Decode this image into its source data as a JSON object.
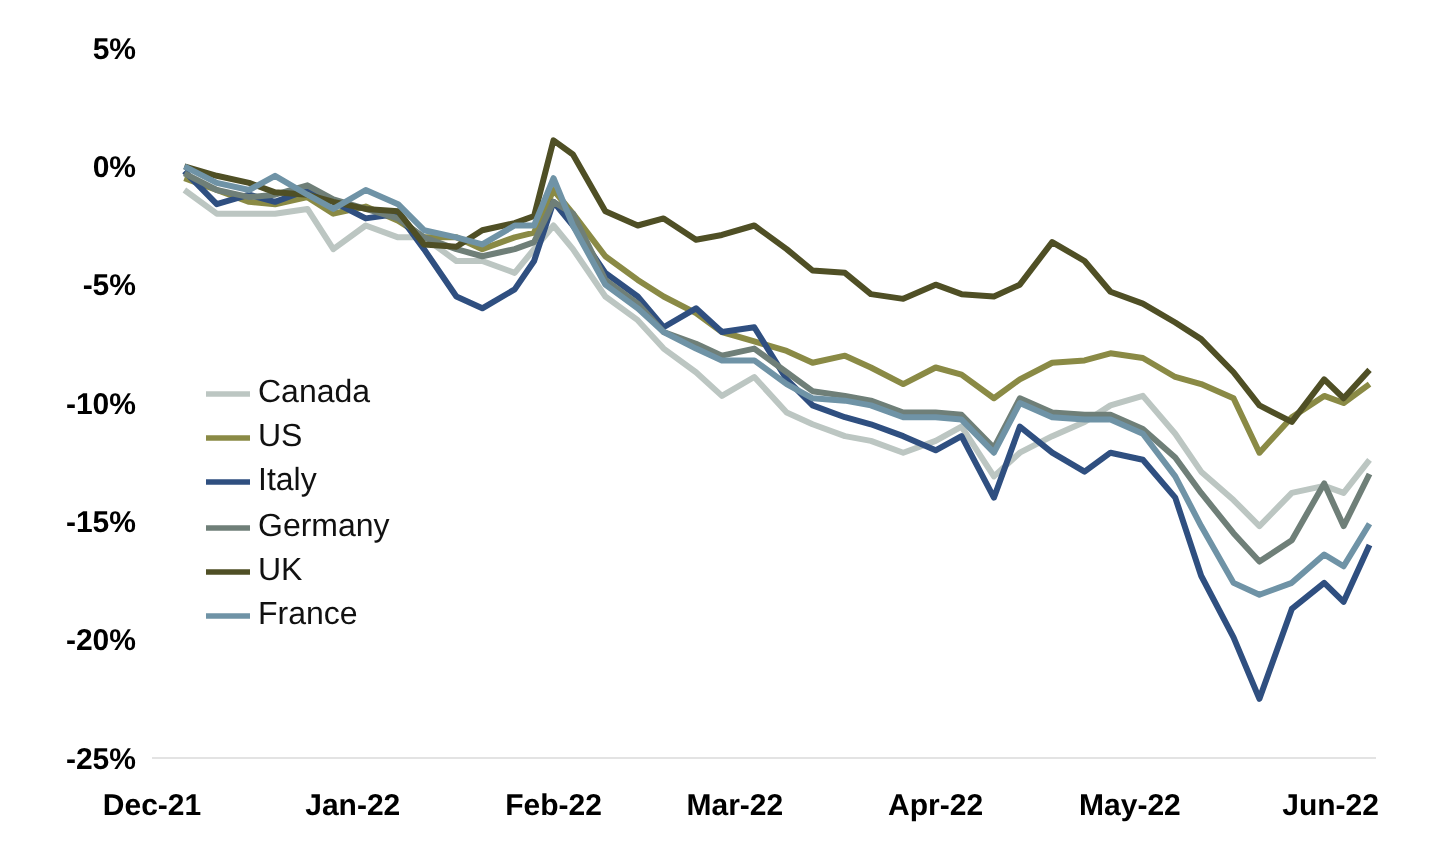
{
  "chart_data": {
    "type": "line",
    "x": [
      "2021-12-06",
      "2021-12-11",
      "2021-12-16",
      "2021-12-20",
      "2021-12-25",
      "2021-12-29",
      "2022-01-03",
      "2022-01-08",
      "2022-01-12",
      "2022-01-17",
      "2022-01-21",
      "2022-01-26",
      "2022-01-29",
      "2022-02-01",
      "2022-02-04",
      "2022-02-09",
      "2022-02-14",
      "2022-02-18",
      "2022-02-23",
      "2022-02-27",
      "2022-03-04",
      "2022-03-09",
      "2022-03-13",
      "2022-03-18",
      "2022-03-22",
      "2022-03-27",
      "2022-04-01",
      "2022-04-05",
      "2022-04-10",
      "2022-04-14",
      "2022-04-19",
      "2022-04-24",
      "2022-04-28",
      "2022-05-03",
      "2022-05-08",
      "2022-05-12",
      "2022-05-17",
      "2022-05-21",
      "2022-05-26",
      "2022-05-31",
      "2022-06-03",
      "2022-06-07"
    ],
    "series": [
      {
        "name": "Canada",
        "color": "#bcc6c2",
        "values": [
          -1.0,
          -2.0,
          -2.0,
          -2.0,
          -1.8,
          -3.5,
          -2.5,
          -3.0,
          -3.0,
          -4.0,
          -4.0,
          -4.5,
          -3.5,
          -2.5,
          -3.5,
          -5.5,
          -6.5,
          -7.7,
          -8.7,
          -9.7,
          -8.9,
          -10.4,
          -10.9,
          -11.4,
          -11.6,
          -12.1,
          -11.6,
          -11.0,
          -13.1,
          -12.1,
          -11.4,
          -10.8,
          -10.1,
          -9.7,
          -11.3,
          -12.9,
          -14.1,
          -15.2,
          -13.8,
          -13.5,
          -13.8,
          -12.4
        ]
      },
      {
        "name": "US",
        "color": "#8a8a45",
        "values": [
          -0.5,
          -1.0,
          -1.5,
          -1.6,
          -1.3,
          -2.0,
          -1.7,
          -2.3,
          -3.0,
          -3.0,
          -3.5,
          -3.0,
          -2.8,
          -1.0,
          -2.0,
          -3.8,
          -4.8,
          -5.5,
          -6.2,
          -7.0,
          -7.4,
          -7.8,
          -8.3,
          -8.0,
          -8.5,
          -9.2,
          -8.5,
          -8.8,
          -9.8,
          -9.0,
          -8.3,
          -8.2,
          -7.9,
          -8.1,
          -8.9,
          -9.2,
          -9.8,
          -12.1,
          -10.6,
          -9.7,
          -10.0,
          -9.2
        ]
      },
      {
        "name": "Italy",
        "color": "#2f4f80",
        "values": [
          -0.2,
          -1.6,
          -1.2,
          -1.5,
          -1.0,
          -1.5,
          -2.2,
          -2.0,
          -3.5,
          -5.5,
          -6.0,
          -5.2,
          -4.0,
          -1.5,
          -2.5,
          -4.5,
          -5.5,
          -6.8,
          -6.0,
          -7.0,
          -6.8,
          -9.0,
          -10.1,
          -10.6,
          -10.9,
          -11.4,
          -12.0,
          -11.4,
          -14.0,
          -11.0,
          -12.1,
          -12.9,
          -12.1,
          -12.4,
          -14.0,
          -17.3,
          -19.9,
          -22.5,
          -18.7,
          -17.6,
          -18.4,
          -16.0
        ]
      },
      {
        "name": "Germany",
        "color": "#6f7f78",
        "values": [
          -0.3,
          -1.0,
          -1.3,
          -1.2,
          -0.8,
          -1.4,
          -1.8,
          -2.2,
          -3.0,
          -3.5,
          -3.8,
          -3.5,
          -3.2,
          -1.5,
          -2.0,
          -4.8,
          -5.8,
          -7.0,
          -7.5,
          -8.0,
          -7.7,
          -8.7,
          -9.5,
          -9.7,
          -9.9,
          -10.4,
          -10.4,
          -10.5,
          -11.9,
          -9.8,
          -10.4,
          -10.5,
          -10.5,
          -11.1,
          -12.3,
          -13.8,
          -15.5,
          -16.7,
          -15.8,
          -13.4,
          -15.2,
          -13.0
        ]
      },
      {
        "name": "UK",
        "color": "#4f4f25",
        "values": [
          0,
          -0.4,
          -0.7,
          -1.1,
          -1.2,
          -1.5,
          -1.8,
          -1.9,
          -3.3,
          -3.4,
          -2.7,
          -2.4,
          -2.1,
          1.1,
          0.5,
          -1.9,
          -2.5,
          -2.2,
          -3.1,
          -2.9,
          -2.5,
          -3.5,
          -4.4,
          -4.5,
          -5.4,
          -5.6,
          -5.0,
          -5.4,
          -5.5,
          -5.0,
          -3.2,
          -4.0,
          -5.3,
          -5.8,
          -6.6,
          -7.3,
          -8.7,
          -10.1,
          -10.8,
          -9.0,
          -9.8,
          -8.6
        ]
      },
      {
        "name": "France",
        "color": "#6f93a6",
        "values": [
          0,
          -0.7,
          -1.0,
          -0.4,
          -1.2,
          -1.8,
          -1.0,
          -1.6,
          -2.7,
          -3.0,
          -3.3,
          -2.5,
          -2.5,
          -0.5,
          -2.5,
          -5.0,
          -6.0,
          -7.0,
          -7.7,
          -8.2,
          -8.2,
          -9.2,
          -9.8,
          -9.9,
          -10.1,
          -10.6,
          -10.6,
          -10.7,
          -12.1,
          -10.0,
          -10.6,
          -10.7,
          -10.7,
          -11.3,
          -13.1,
          -15.2,
          -17.6,
          -18.1,
          -17.6,
          -16.4,
          -16.9,
          -15.1
        ]
      }
    ],
    "xlim": [
      "2021-12-01",
      "2022-06-08"
    ],
    "xticks": [
      {
        "value": "2021-12-01",
        "label": "Dec-21"
      },
      {
        "value": "2022-01-01",
        "label": "Jan-22"
      },
      {
        "value": "2022-02-01",
        "label": "Feb-22"
      },
      {
        "value": "2022-03-01",
        "label": "Mar-22"
      },
      {
        "value": "2022-04-01",
        "label": "Apr-22"
      },
      {
        "value": "2022-05-01",
        "label": "May-22"
      },
      {
        "value": "2022-06-01",
        "label": "Jun-22"
      }
    ],
    "ylim": [
      -25,
      5
    ],
    "yticks": [
      {
        "value": 5,
        "label": "5%"
      },
      {
        "value": 0,
        "label": "0%"
      },
      {
        "value": -5,
        "label": "-5%"
      },
      {
        "value": -10,
        "label": "-10%"
      },
      {
        "value": -15,
        "label": "-15%"
      },
      {
        "value": -20,
        "label": "-20%"
      },
      {
        "value": -25,
        "label": "-25%"
      }
    ],
    "legend": "left",
    "grid": false,
    "marker": "none",
    "line_style": "solid"
  }
}
